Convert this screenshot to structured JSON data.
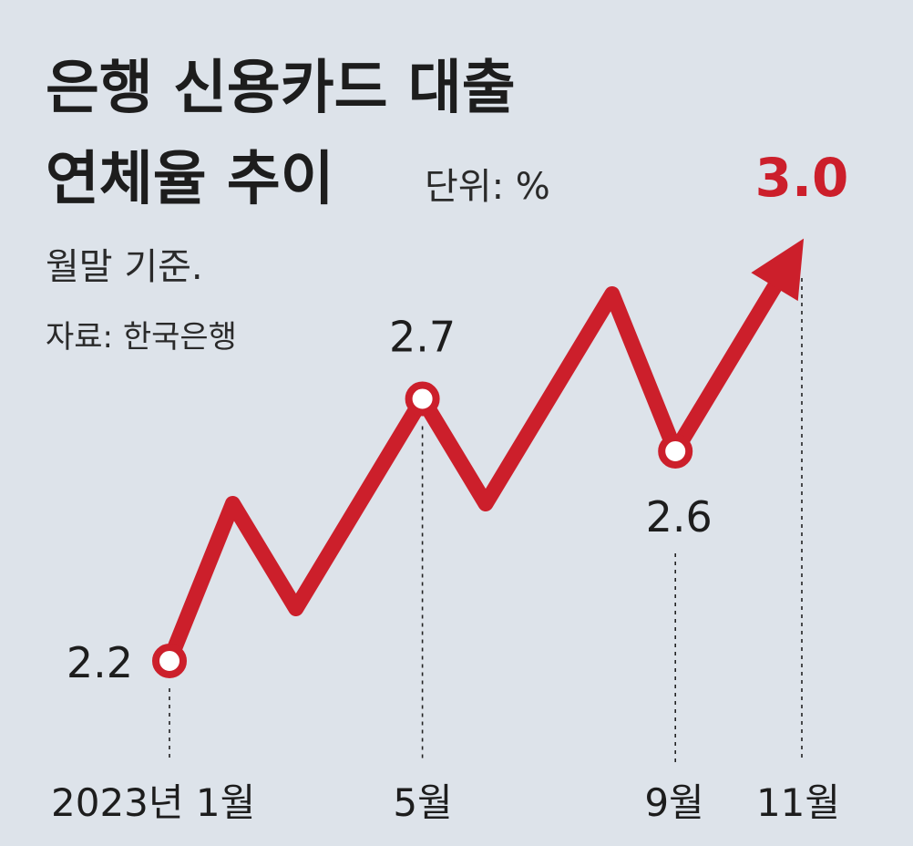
{
  "header": {
    "title_line1": "은행 신용카드 대출",
    "title_line2": "연체율 추이",
    "unit": "단위: %",
    "basis": "월말 기준.",
    "source": "자료: 한국은행"
  },
  "chart_data": {
    "type": "line",
    "title": "은행 신용카드 대출 연체율 추이",
    "unit": "%",
    "x": [
      "2023-01",
      "2023-02",
      "2023-03",
      "2023-04",
      "2023-05",
      "2023-06",
      "2023-07",
      "2023-08",
      "2023-09",
      "2023-10",
      "2023-11"
    ],
    "values": [
      2.2,
      2.5,
      2.3,
      2.5,
      2.7,
      2.5,
      2.7,
      2.9,
      2.6,
      2.8,
      3.0
    ],
    "labeled_points": [
      {
        "x": "2023-01",
        "value": "2.2",
        "tick": "2023년 1월"
      },
      {
        "x": "2023-05",
        "value": "2.7",
        "tick": "5월"
      },
      {
        "x": "2023-09",
        "value": "2.6",
        "tick": "9월"
      },
      {
        "x": "2023-11",
        "value": "3.0",
        "tick": "11월"
      }
    ],
    "ylim": [
      2.0,
      3.1
    ],
    "line_color": "#cc1f2b",
    "final_label_color": "#cc1f2b",
    "background_color": "#dde3ea",
    "grid": false,
    "legend": "none"
  }
}
